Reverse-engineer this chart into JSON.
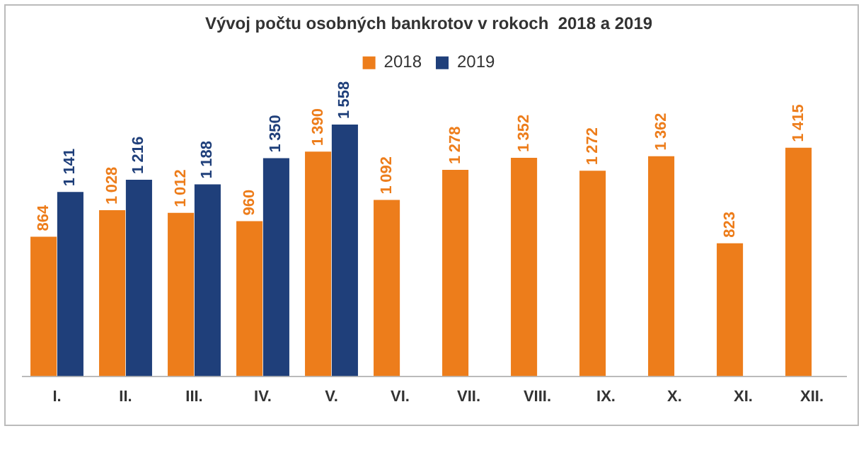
{
  "chart_data": {
    "type": "bar",
    "title": "Vývoj počtu osobných bankrotov v rokoch  2018 a 2019",
    "categories": [
      "I.",
      "II.",
      "III.",
      "IV.",
      "V.",
      "VI.",
      "VII.",
      "VIII.",
      "IX.",
      "X.",
      "XI.",
      "XII."
    ],
    "series": [
      {
        "name": "2018",
        "color": "#ed7d1b",
        "values": [
          864,
          1028,
          1012,
          960,
          1390,
          1092,
          1278,
          1352,
          1272,
          1362,
          823,
          1415
        ]
      },
      {
        "name": "2019",
        "color": "#1f3f7a",
        "values": [
          1141,
          1216,
          1188,
          1350,
          1558,
          null,
          null,
          null,
          null,
          null,
          null,
          null
        ]
      }
    ],
    "tick_labels": "x",
    "grid": false,
    "legend": "top",
    "data_labels": true
  }
}
